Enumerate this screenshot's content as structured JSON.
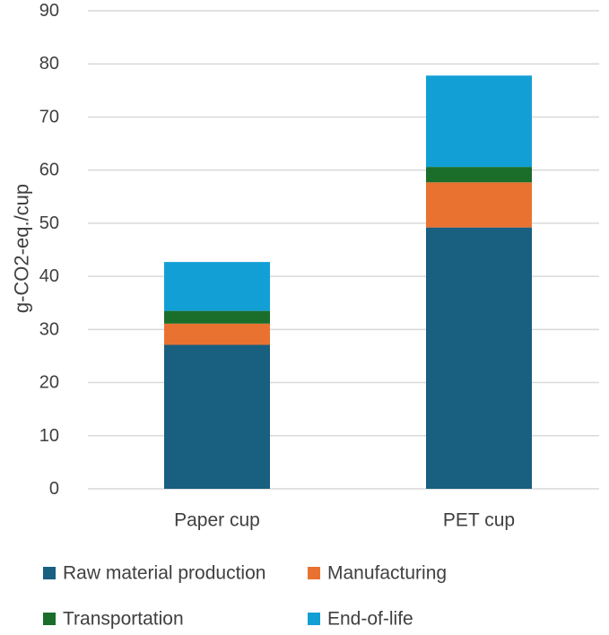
{
  "chart_data": {
    "type": "bar",
    "stacked": true,
    "title": "",
    "xlabel": "",
    "ylabel": "g-CO2-eq./cup",
    "ylim": [
      0,
      90
    ],
    "yticks": [
      0,
      10,
      20,
      30,
      40,
      50,
      60,
      70,
      80,
      90
    ],
    "grid": true,
    "legend_position": "bottom",
    "categories": [
      "Paper cup",
      "PET cup"
    ],
    "series": [
      {
        "name": "Raw material production",
        "color": "#185f80",
        "values": [
          27.1,
          49.2
        ]
      },
      {
        "name": "Manufacturing",
        "color": "#e97231",
        "values": [
          4.0,
          8.5
        ]
      },
      {
        "name": "Transportation",
        "color": "#1a6e2a",
        "values": [
          2.4,
          2.9
        ]
      },
      {
        "name": "End-of-life",
        "color": "#129fd6",
        "values": [
          9.2,
          17.2
        ]
      }
    ]
  }
}
